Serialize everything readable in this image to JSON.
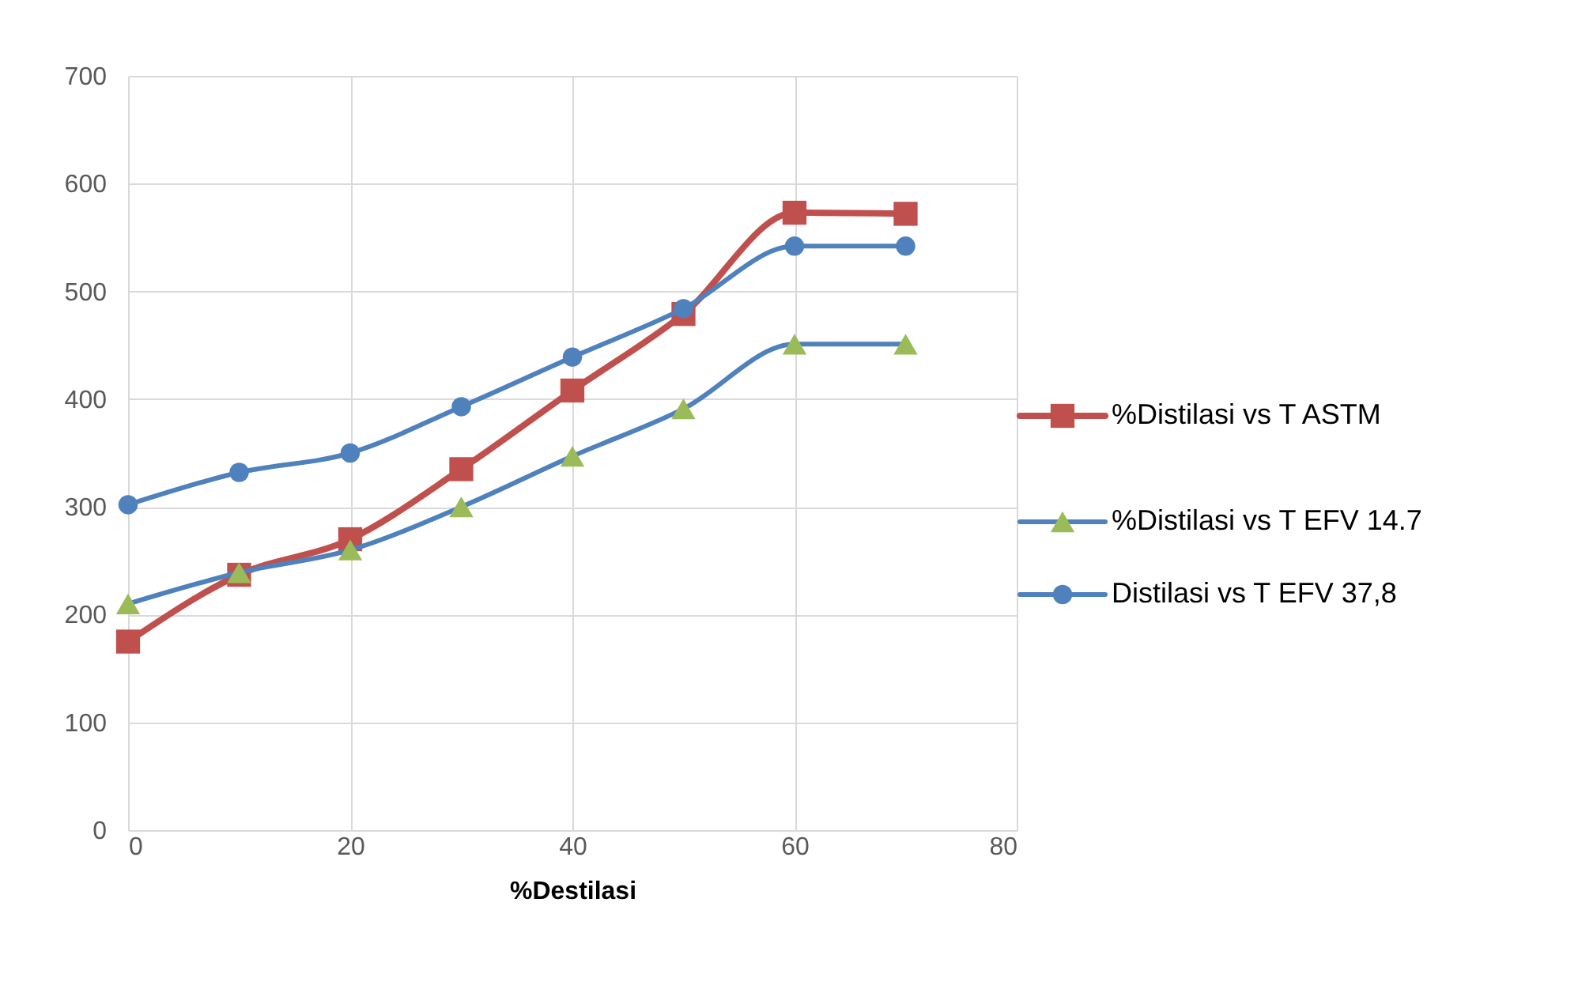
{
  "chart_data": {
    "type": "line",
    "xlabel": "%Destilasi",
    "x": [
      0,
      10,
      20,
      30,
      40,
      50,
      60,
      70
    ],
    "series": [
      {
        "name": "%Distilasi vs T ASTM",
        "color": "#c0504d",
        "marker": "square",
        "values": [
          175,
          237,
          270,
          335,
          408,
          479,
          573,
          572
        ]
      },
      {
        "name": "%Distilasi vs T EFV 14.7",
        "color": "#4f81bd",
        "marker": "triangle",
        "colors": [
          "#9bbb59",
          "#9bbb59",
          "#9bbb59",
          "#9bbb59",
          "#9bbb59",
          "#9bbb59",
          "#9bbb59",
          "#9bbb59"
        ],
        "values": [
          210,
          239,
          260,
          300,
          347,
          391,
          451,
          451
        ]
      },
      {
        "name": "Distilasi vs T EFV 37,8",
        "color": "#4f81bd",
        "marker": "circle",
        "values": [
          302,
          332,
          350,
          393,
          439,
          484,
          542,
          542
        ]
      }
    ],
    "xlim": [
      0,
      80
    ],
    "xticks": [
      0,
      20,
      40,
      60,
      80
    ],
    "ylim": [
      0,
      700
    ],
    "yticks": [
      0,
      100,
      200,
      300,
      400,
      500,
      600,
      700
    ],
    "grid": true,
    "legend": "right",
    "line_style": "solid"
  }
}
